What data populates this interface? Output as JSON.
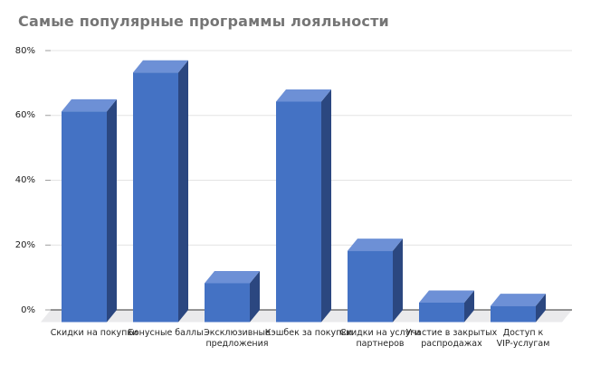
{
  "title": "Самые популярные программы лояльности",
  "colors": {
    "background": "#FFFFFF",
    "title_text": "#757575",
    "bar_front": "#4472C4",
    "bar_top": "#6D90D6",
    "bar_side": "#2B4780",
    "floor": "#EAEAEC",
    "gridline": "#E4E4E4",
    "axis_line": "#5A5A5A",
    "tick": "#9E9E9E",
    "axis_label_text": "#262626"
  },
  "chart_data": {
    "type": "bar",
    "style": "3d-columns",
    "title": "Самые популярные программы лояльности",
    "categories": [
      "Скидки на покупки",
      "Бонусные баллы",
      "Эксклюзивные предложения",
      "Кэшбек за покупки",
      "Скидки на услуги партнеров",
      "Участие в закрытых распродажах",
      "Доступ к VIP-услугам"
    ],
    "category_wrap": [
      [
        "Скидки на покупки"
      ],
      [
        "Бонусные баллы"
      ],
      [
        "Эксклюзивные",
        "предложения"
      ],
      [
        "Кэшбек за покупки"
      ],
      [
        "Скидки на услуги",
        "партнеров"
      ],
      [
        "Участие в закрытых",
        "распродажах"
      ],
      [
        "Доступ к",
        "VIP-услугам"
      ]
    ],
    "values": [
      65,
      77,
      12,
      68,
      22,
      6,
      5
    ],
    "unit": "%",
    "xlabel": "",
    "ylabel": "",
    "ylim": [
      0,
      80
    ],
    "ytick_values": [
      0,
      20,
      40,
      60,
      80
    ],
    "yticks": [
      "0%",
      "20%",
      "40%",
      "60%",
      "80%"
    ],
    "grid": true,
    "legend": false
  }
}
